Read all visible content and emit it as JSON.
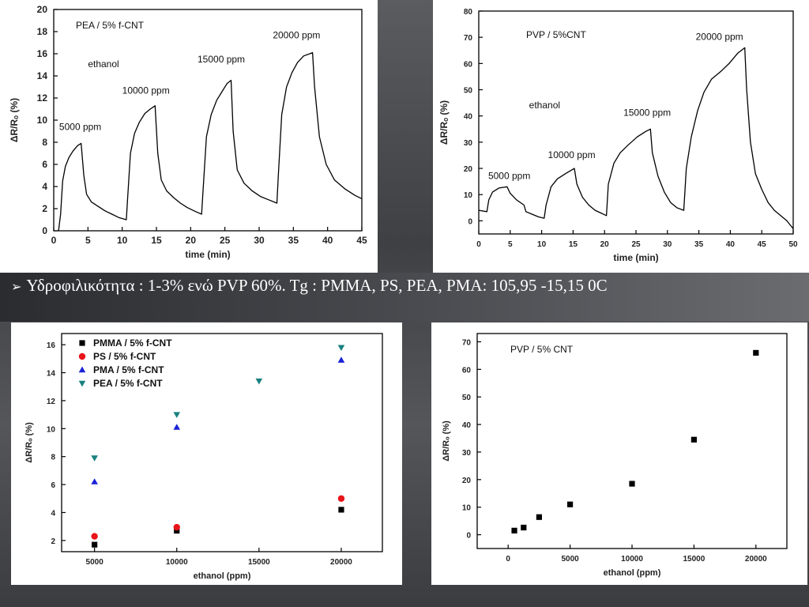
{
  "caption": {
    "bullet": "➢",
    "text": "Υδροφιλικότητα : 1-3% ενώ PVP 60%. Tg : PMMA, PS, PEA, PMA: 105,95 -15,15 0C"
  },
  "chart_data": [
    {
      "type": "line",
      "annotation": "PEA / 5% f-CNT",
      "xlabel": "time (min)",
      "ylabel": "ΔR/Rₒ (%)",
      "xlim": [
        0,
        45
      ],
      "ylim": [
        0,
        20
      ],
      "xticks": [
        0,
        5,
        10,
        15,
        20,
        25,
        30,
        35,
        40,
        45
      ],
      "yticks": [
        0,
        2,
        4,
        6,
        8,
        10,
        12,
        14,
        16,
        18,
        20
      ],
      "labels": [
        {
          "text": "ethanol",
          "x": 5,
          "y": 14.8
        },
        {
          "text": "5000 ppm",
          "x": 0.8,
          "y": 9.1
        },
        {
          "text": "10000 ppm",
          "x": 10,
          "y": 12.4
        },
        {
          "text": "15000 ppm",
          "x": 21,
          "y": 15.2
        },
        {
          "text": "20000 ppm",
          "x": 32,
          "y": 17.4
        }
      ],
      "series": [
        {
          "values": [
            [
              0.7,
              0.0
            ],
            [
              1.0,
              1.5
            ],
            [
              1.3,
              4.5
            ],
            [
              1.7,
              5.8
            ],
            [
              2.2,
              6.6
            ],
            [
              2.8,
              7.2
            ],
            [
              3.5,
              7.7
            ],
            [
              4.0,
              7.9
            ],
            [
              4.4,
              5.0
            ],
            [
              4.8,
              3.3
            ],
            [
              5.5,
              2.6
            ],
            [
              6.5,
              2.2
            ],
            [
              7.5,
              1.8
            ],
            [
              8.5,
              1.5
            ],
            [
              9.5,
              1.2
            ],
            [
              10.6,
              1.0
            ],
            [
              10.8,
              3.0
            ],
            [
              11.2,
              7.0
            ],
            [
              11.8,
              8.8
            ],
            [
              12.5,
              9.8
            ],
            [
              13.3,
              10.6
            ],
            [
              14.1,
              11.0
            ],
            [
              14.8,
              11.3
            ],
            [
              15.2,
              7.0
            ],
            [
              15.7,
              4.6
            ],
            [
              16.5,
              3.6
            ],
            [
              17.5,
              3.0
            ],
            [
              18.5,
              2.5
            ],
            [
              19.5,
              2.1
            ],
            [
              20.5,
              1.8
            ],
            [
              21.6,
              1.5
            ],
            [
              21.8,
              3.5
            ],
            [
              22.3,
              8.5
            ],
            [
              23.0,
              10.5
            ],
            [
              23.8,
              11.8
            ],
            [
              24.6,
              12.6
            ],
            [
              25.3,
              13.3
            ],
            [
              25.9,
              13.6
            ],
            [
              26.2,
              9.0
            ],
            [
              26.8,
              5.5
            ],
            [
              27.8,
              4.3
            ],
            [
              29.0,
              3.6
            ],
            [
              30.2,
              3.1
            ],
            [
              31.4,
              2.8
            ],
            [
              32.6,
              2.5
            ],
            [
              32.8,
              5.0
            ],
            [
              33.3,
              10.5
            ],
            [
              34.0,
              13.0
            ],
            [
              34.8,
              14.3
            ],
            [
              35.6,
              15.2
            ],
            [
              36.5,
              15.8
            ],
            [
              37.4,
              16.0
            ],
            [
              37.8,
              16.1
            ],
            [
              38.1,
              13.0
            ],
            [
              38.8,
              8.5
            ],
            [
              39.8,
              6.0
            ],
            [
              41.0,
              4.6
            ],
            [
              42.5,
              3.8
            ],
            [
              44.0,
              3.2
            ],
            [
              45.0,
              2.9
            ]
          ]
        }
      ]
    },
    {
      "type": "line",
      "annotation": "PVP / 5%CNT",
      "xlabel": "time (min)",
      "ylabel": "ΔR/Rₒ (%)",
      "xlim": [
        0,
        50
      ],
      "ylim": [
        -5,
        80
      ],
      "xticks": [
        0,
        5,
        10,
        15,
        20,
        25,
        30,
        35,
        40,
        45,
        50
      ],
      "yticks": [
        0,
        10,
        20,
        30,
        40,
        50,
        60,
        70,
        80
      ],
      "labels": [
        {
          "text": "ethanol",
          "x": 8,
          "y": 43
        },
        {
          "text": "5000 ppm",
          "x": 1.5,
          "y": 16
        },
        {
          "text": "10000 ppm",
          "x": 11,
          "y": 24
        },
        {
          "text": "15000 ppm",
          "x": 23,
          "y": 40
        },
        {
          "text": "20000 ppm",
          "x": 34.5,
          "y": 69
        }
      ],
      "series": [
        {
          "values": [
            [
              0,
              4
            ],
            [
              1.3,
              3.5
            ],
            [
              1.6,
              8
            ],
            [
              2.2,
              11
            ],
            [
              3.2,
              12.5
            ],
            [
              4.5,
              13
            ],
            [
              5.0,
              10.5
            ],
            [
              6.0,
              8
            ],
            [
              7.2,
              6
            ],
            [
              7.5,
              3.5
            ],
            [
              8.5,
              2.5
            ],
            [
              9.5,
              1.5
            ],
            [
              10.4,
              1
            ],
            [
              10.7,
              6
            ],
            [
              11.5,
              13
            ],
            [
              12.5,
              16
            ],
            [
              13.8,
              18
            ],
            [
              15.2,
              20
            ],
            [
              15.6,
              14
            ],
            [
              16.5,
              9
            ],
            [
              17.5,
              6
            ],
            [
              18.5,
              4
            ],
            [
              20.3,
              2
            ],
            [
              20.6,
              14
            ],
            [
              21.5,
              22
            ],
            [
              22.5,
              26
            ],
            [
              23.8,
              29
            ],
            [
              25.2,
              32
            ],
            [
              26.5,
              34
            ],
            [
              27.3,
              35
            ],
            [
              27.6,
              26
            ],
            [
              28.5,
              17
            ],
            [
              29.5,
              11
            ],
            [
              30.5,
              7
            ],
            [
              31.5,
              5
            ],
            [
              32.6,
              4
            ],
            [
              33.0,
              20
            ],
            [
              33.8,
              32
            ],
            [
              34.8,
              42
            ],
            [
              35.8,
              49
            ],
            [
              37.0,
              54
            ],
            [
              38.5,
              57
            ],
            [
              39.8,
              60
            ],
            [
              41.2,
              64
            ],
            [
              42.3,
              66
            ],
            [
              42.6,
              50
            ],
            [
              43.2,
              30
            ],
            [
              44.0,
              18
            ],
            [
              45.0,
              12
            ],
            [
              46.0,
              7
            ],
            [
              47.0,
              4
            ],
            [
              48.0,
              2
            ],
            [
              49.0,
              0
            ],
            [
              50,
              -3
            ]
          ]
        }
      ]
    },
    {
      "type": "scatter",
      "xlabel": "ethanol (ppm)",
      "ylabel": "ΔR/Rₒ (%)",
      "xlim": [
        3000,
        22500
      ],
      "ylim": [
        1.2,
        16.8
      ],
      "xticks": [
        5000,
        10000,
        15000,
        20000
      ],
      "yticks": [
        2,
        4,
        6,
        8,
        10,
        12,
        14,
        16
      ],
      "legend_position": "top-left",
      "series": [
        {
          "name": "PMMA / 5% f-CNT",
          "color": "#000000",
          "marker": "square",
          "x": [
            5000,
            10000,
            20000
          ],
          "values": [
            1.7,
            2.7,
            4.2
          ]
        },
        {
          "name": "PS / 5% f-CNT",
          "color": "#e8141b",
          "marker": "circle",
          "x": [
            5000,
            10000,
            20000
          ],
          "values": [
            2.3,
            2.95,
            5.0
          ]
        },
        {
          "name": "PMA / 5% f-CNT",
          "color": "#1a22d6",
          "marker": "triangle-up",
          "x": [
            5000,
            10000,
            20000
          ],
          "values": [
            6.2,
            10.1,
            14.9
          ]
        },
        {
          "name": "PEA / 5% f-CNT",
          "color": "#1a8080",
          "marker": "triangle-down",
          "x": [
            5000,
            10000,
            15000,
            20000
          ],
          "values": [
            7.9,
            11.0,
            13.4,
            15.8
          ]
        }
      ]
    },
    {
      "type": "scatter",
      "annotation": "PVP / 5% CNT",
      "xlabel": "ethanol (ppm)",
      "ylabel": "ΔR/Rₒ (%)",
      "xlim": [
        -2500,
        22500
      ],
      "ylim": [
        -5,
        73
      ],
      "xticks": [
        0,
        5000,
        10000,
        15000,
        20000
      ],
      "yticks": [
        0,
        10,
        20,
        30,
        40,
        50,
        60,
        70
      ],
      "series": [
        {
          "color": "#000000",
          "marker": "square",
          "x": [
            500,
            1250,
            2500,
            5000,
            10000,
            15000,
            20000
          ],
          "values": [
            1.5,
            2.6,
            6.4,
            11.0,
            18.5,
            34.5,
            66.0
          ]
        }
      ]
    }
  ]
}
